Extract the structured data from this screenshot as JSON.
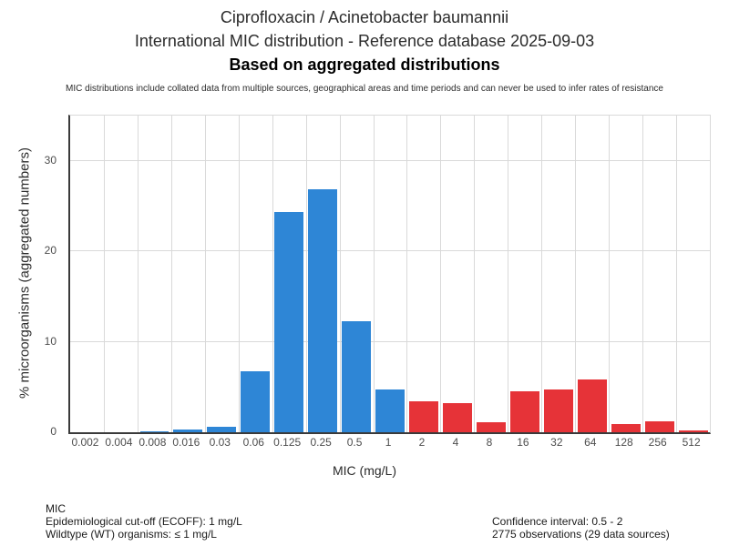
{
  "title": {
    "line1": "Ciprofloxacin / Acinetobacter baumannii",
    "line2": "International MIC distribution - Reference database 2025-09-03",
    "line3": "Based on aggregated distributions",
    "disclaimer": "MIC distributions include collated data from multiple sources, geographical areas and time periods and can never be used to infer rates of resistance"
  },
  "chart_data": {
    "type": "bar",
    "title": "Ciprofloxacin / Acinetobacter baumannii — International MIC distribution",
    "categories": [
      "0.002",
      "0.004",
      "0.008",
      "0.016",
      "0.03",
      "0.06",
      "0.125",
      "0.25",
      "0.5",
      "1",
      "2",
      "4",
      "8",
      "16",
      "32",
      "64",
      "128",
      "256",
      "512"
    ],
    "values": [
      0,
      0,
      0.15,
      0.3,
      0.6,
      6.7,
      24.3,
      26.9,
      12.3,
      4.7,
      3.4,
      3.2,
      1.1,
      4.5,
      4.7,
      5.8,
      0.9,
      1.2,
      0.2
    ],
    "bar_colors": [
      "#2e86d6",
      "#2e86d6",
      "#2e86d6",
      "#2e86d6",
      "#2e86d6",
      "#2e86d6",
      "#2e86d6",
      "#2e86d6",
      "#2e86d6",
      "#2e86d6",
      "#e63338",
      "#e63338",
      "#e63338",
      "#e63338",
      "#e63338",
      "#e63338",
      "#e63338",
      "#e63338",
      "#e63338"
    ],
    "color_legend": {
      "wildtype_blue": "#2e86d6",
      "non_wildtype_red": "#e63338"
    },
    "xlabel": "MIC (mg/L)",
    "ylabel": "% microorganisms (aggregated numbers)",
    "yticks": [
      0,
      10,
      20,
      30
    ],
    "ylim": [
      0,
      35
    ],
    "grid": true,
    "legend": "none"
  },
  "footer": {
    "left": [
      "MIC",
      "Epidemiological cut-off (ECOFF): 1 mg/L",
      "Wildtype (WT) organisms: ≤ 1 mg/L"
    ],
    "right": [
      "Confidence interval: 0.5 - 2",
      "2775 observations (29 data sources)"
    ]
  }
}
